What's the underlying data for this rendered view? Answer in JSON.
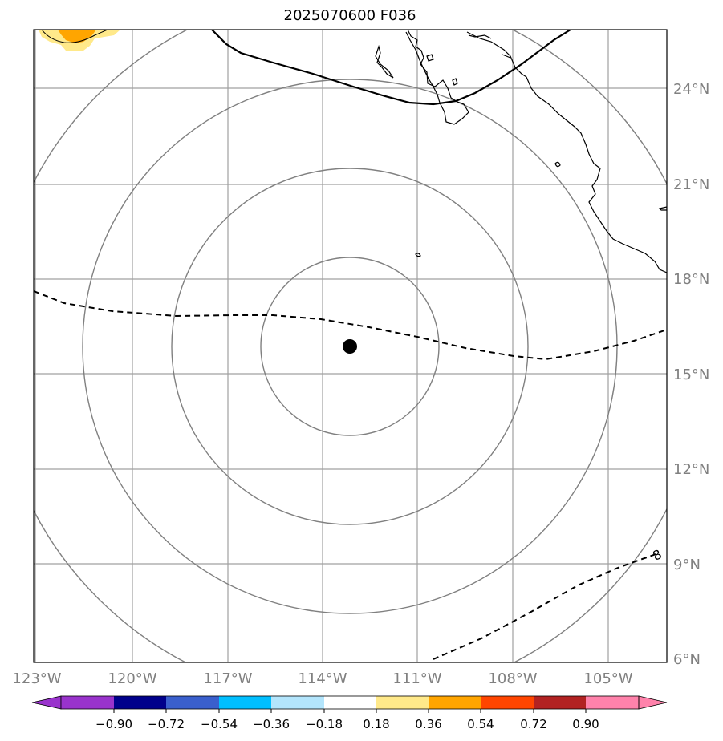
{
  "title": "2025070600 F036",
  "map": {
    "lat_labels": [
      "24°N",
      "21°N",
      "18°N",
      "15°N",
      "12°N",
      "9°N",
      "6°N"
    ],
    "lon_labels": [
      "123°W",
      "120°W",
      "117°W",
      "114°W",
      "111°W",
      "108°W",
      "105°W"
    ],
    "contour_label": "8",
    "colors": {
      "gridline": "#a0a0a0",
      "range_ring": "#808080",
      "coast": "#000000",
      "center_marker": "#000000",
      "contour": "#000000",
      "positive_fill_light": "#ffe98a",
      "positive_fill_dark": "#ffa500"
    }
  },
  "colorbar": {
    "tick_labels": [
      "−0.90",
      "−0.72",
      "−0.54",
      "−0.36",
      "−0.18",
      "0.18",
      "0.36",
      "0.54",
      "0.72",
      "0.90"
    ],
    "colors": [
      "#9933cc",
      "#00008b",
      "#3a5fcd",
      "#00bfff",
      "#b3e5fc",
      "#ffffff",
      "#ffe98a",
      "#ffa500",
      "#ff4500",
      "#b22222",
      "#ff82ab"
    ]
  }
}
